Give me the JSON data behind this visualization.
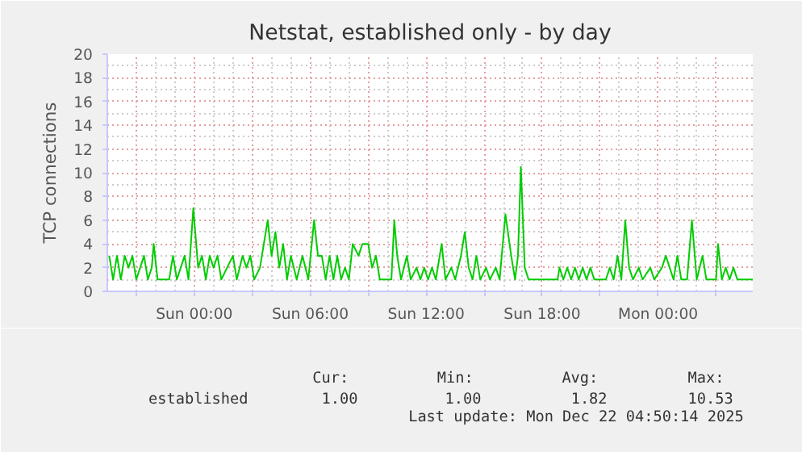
{
  "chart_data": {
    "type": "line",
    "title": "Netstat, established only - by day",
    "ylabel": "TCP connections",
    "xlim": [
      "2025-12-20T19:30",
      "2025-12-22T04:54"
    ],
    "ylim": [
      0,
      20
    ],
    "xticks": [
      {
        "value": "2025-12-20T21:00",
        "label": null
      },
      {
        "value": "2025-12-21T00:00",
        "label": "Sun 00:00"
      },
      {
        "value": "2025-12-21T03:00",
        "label": null
      },
      {
        "value": "2025-12-21T06:00",
        "label": "Sun 06:00"
      },
      {
        "value": "2025-12-21T09:00",
        "label": null
      },
      {
        "value": "2025-12-21T12:00",
        "label": "Sun 12:00"
      },
      {
        "value": "2025-12-21T15:00",
        "label": null
      },
      {
        "value": "2025-12-21T18:00",
        "label": "Sun 18:00"
      },
      {
        "value": "2025-12-21T21:00",
        "label": null
      },
      {
        "value": "2025-12-22T00:00",
        "label": "Mon 00:00"
      },
      {
        "value": "2025-12-22T03:00",
        "label": null
      }
    ],
    "yticks": [
      0,
      2,
      4,
      6,
      8,
      10,
      12,
      14,
      16,
      18,
      20
    ],
    "grid": true,
    "legend": "bottom",
    "marker": "none",
    "line_style": "solid",
    "series": [
      {
        "name": "established",
        "color": "#00cc00",
        "x": [
          "2025-12-20T19:36",
          "2025-12-20T19:48",
          "2025-12-20T20:00",
          "2025-12-20T20:12",
          "2025-12-20T20:24",
          "2025-12-20T20:36",
          "2025-12-20T20:48",
          "2025-12-20T21:00",
          "2025-12-20T21:12",
          "2025-12-20T21:24",
          "2025-12-20T21:36",
          "2025-12-20T21:48",
          "2025-12-20T21:54",
          "2025-12-20T22:06",
          "2025-12-20T22:42",
          "2025-12-20T22:54",
          "2025-12-20T23:06",
          "2025-12-20T23:18",
          "2025-12-20T23:30",
          "2025-12-20T23:42",
          "2025-12-20T23:57",
          "2025-12-21T00:12",
          "2025-12-21T00:24",
          "2025-12-21T00:36",
          "2025-12-21T00:48",
          "2025-12-21T01:00",
          "2025-12-21T01:12",
          "2025-12-21T01:24",
          "2025-12-21T01:42",
          "2025-12-21T02:00",
          "2025-12-21T02:12",
          "2025-12-21T02:30",
          "2025-12-21T02:42",
          "2025-12-21T02:54",
          "2025-12-21T03:06",
          "2025-12-21T03:24",
          "2025-12-21T03:36",
          "2025-12-21T03:48",
          "2025-12-21T04:00",
          "2025-12-21T04:12",
          "2025-12-21T04:24",
          "2025-12-21T04:36",
          "2025-12-21T04:48",
          "2025-12-21T05:00",
          "2025-12-21T05:18",
          "2025-12-21T05:36",
          "2025-12-21T05:54",
          "2025-12-21T06:12",
          "2025-12-21T06:24",
          "2025-12-21T06:36",
          "2025-12-21T06:48",
          "2025-12-21T07:00",
          "2025-12-21T07:12",
          "2025-12-21T07:24",
          "2025-12-21T07:36",
          "2025-12-21T07:48",
          "2025-12-21T08:00",
          "2025-12-21T08:12",
          "2025-12-21T08:30",
          "2025-12-21T08:42",
          "2025-12-21T09:00",
          "2025-12-21T09:12",
          "2025-12-21T09:24",
          "2025-12-21T09:36",
          "2025-12-21T10:12",
          "2025-12-21T10:21",
          "2025-12-21T10:30",
          "2025-12-21T10:42",
          "2025-12-21T11:00",
          "2025-12-21T11:12",
          "2025-12-21T11:30",
          "2025-12-21T11:42",
          "2025-12-21T11:54",
          "2025-12-21T12:06",
          "2025-12-21T12:18",
          "2025-12-21T12:30",
          "2025-12-21T12:48",
          "2025-12-21T13:00",
          "2025-12-21T13:18",
          "2025-12-21T13:30",
          "2025-12-21T13:48",
          "2025-12-21T14:00",
          "2025-12-21T14:12",
          "2025-12-21T14:24",
          "2025-12-21T14:36",
          "2025-12-21T14:48",
          "2025-12-21T15:06",
          "2025-12-21T15:18",
          "2025-12-21T15:36",
          "2025-12-21T15:48",
          "2025-12-21T16:06",
          "2025-12-21T16:24",
          "2025-12-21T16:36",
          "2025-12-21T16:45",
          "2025-12-21T16:54",
          "2025-12-21T17:06",
          "2025-12-21T17:18",
          "2025-12-21T18:48",
          "2025-12-21T18:54",
          "2025-12-21T19:06",
          "2025-12-21T19:18",
          "2025-12-21T19:30",
          "2025-12-21T19:42",
          "2025-12-21T19:54",
          "2025-12-21T20:06",
          "2025-12-21T20:18",
          "2025-12-21T20:30",
          "2025-12-21T20:42",
          "2025-12-21T21:18",
          "2025-12-21T21:30",
          "2025-12-21T21:42",
          "2025-12-21T21:54",
          "2025-12-21T22:06",
          "2025-12-21T22:18",
          "2025-12-21T22:30",
          "2025-12-21T22:42",
          "2025-12-21T23:00",
          "2025-12-21T23:12",
          "2025-12-21T23:36",
          "2025-12-21T23:48",
          "2025-12-22T00:12",
          "2025-12-22T00:24",
          "2025-12-22T00:36",
          "2025-12-22T00:48",
          "2025-12-22T01:00",
          "2025-12-22T01:12",
          "2025-12-22T01:30",
          "2025-12-22T01:45",
          "2025-12-22T02:00",
          "2025-12-22T02:18",
          "2025-12-22T02:30",
          "2025-12-22T03:00",
          "2025-12-22T03:06",
          "2025-12-22T03:18",
          "2025-12-22T03:30",
          "2025-12-22T03:42",
          "2025-12-22T03:54",
          "2025-12-22T04:06",
          "2025-12-22T04:54"
        ],
        "values": [
          3,
          1,
          3,
          1,
          3,
          2,
          3,
          1,
          2,
          3,
          1,
          2,
          4,
          1,
          1,
          3,
          1,
          2,
          3,
          1,
          7,
          2,
          3,
          1,
          3,
          2,
          3,
          1,
          2,
          3,
          1,
          3,
          2,
          3,
          1,
          2,
          4,
          6,
          3,
          5,
          2,
          4,
          1,
          3,
          1,
          3,
          1,
          6,
          3,
          3,
          1,
          3,
          1,
          3,
          1,
          2,
          1,
          4,
          3,
          4,
          4,
          2,
          3,
          1,
          1,
          6,
          3,
          1,
          3,
          1,
          2,
          1,
          2,
          1,
          2,
          1,
          4,
          1,
          2,
          1,
          3,
          5,
          2,
          1,
          3,
          1,
          2,
          1,
          2,
          1,
          6.5,
          3,
          1,
          3,
          10.5,
          2,
          1,
          1,
          2,
          1,
          2,
          1,
          2,
          1,
          2,
          1,
          2,
          1,
          1,
          2,
          1,
          3,
          1,
          6,
          2,
          1,
          2,
          1,
          2,
          1,
          2,
          3,
          2,
          1,
          3,
          1,
          1,
          6,
          1,
          3,
          1,
          1,
          4,
          1,
          2,
          1,
          2,
          1,
          1
        ]
      }
    ],
    "annotations": [
      "Cur:",
      "Min:",
      "Avg:",
      "Max:",
      "1.00",
      "1.00",
      "1.82",
      "10.53",
      "Last update: Mon Dec 22 04:50:14 2025"
    ]
  }
}
